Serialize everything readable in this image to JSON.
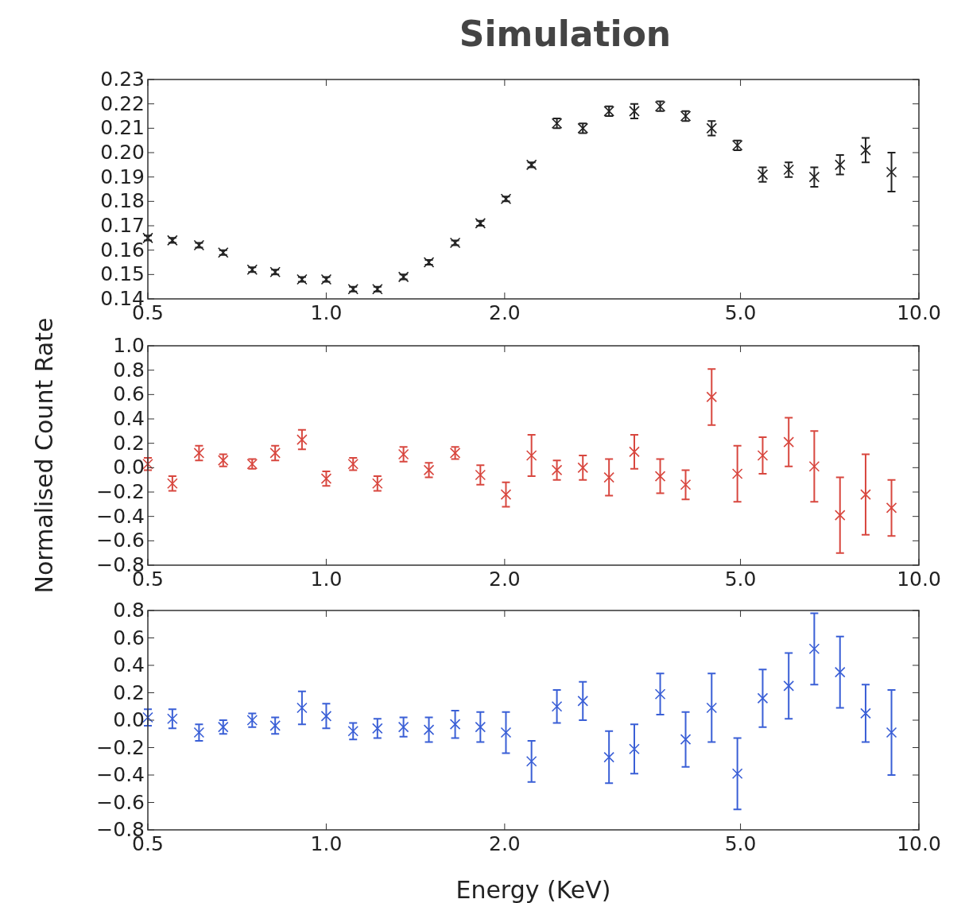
{
  "chart_data": [
    {
      "type": "scatter",
      "title": "Simulation",
      "marker": "cross",
      "grid": false,
      "x": [
        0.5,
        0.55,
        0.61,
        0.67,
        0.75,
        0.82,
        0.91,
        1.0,
        1.11,
        1.22,
        1.35,
        1.49,
        1.65,
        1.82,
        2.01,
        2.22,
        2.45,
        2.71,
        3.0,
        3.31,
        3.66,
        4.04,
        4.47,
        4.94,
        5.45,
        6.03,
        6.66,
        7.36,
        8.13,
        8.99
      ],
      "log": "x",
      "xlim": [
        0.5,
        10
      ],
      "xticks": [
        {
          "value": 0.5,
          "label": "0.5"
        },
        {
          "value": 1,
          "label": "1.0"
        },
        {
          "value": 2,
          "label": "2.0"
        },
        {
          "value": 5,
          "label": "5.0"
        },
        {
          "value": 10,
          "label": "10.0"
        }
      ],
      "ylim": [
        0.14,
        0.23
      ],
      "yticks": [
        {
          "value": 0.14,
          "label": "0.14"
        },
        {
          "value": 0.15,
          "label": "0.15"
        },
        {
          "value": 0.16,
          "label": "0.16"
        },
        {
          "value": 0.17,
          "label": "0.17"
        },
        {
          "value": 0.18,
          "label": "0.18"
        },
        {
          "value": 0.19,
          "label": "0.19"
        },
        {
          "value": 0.2,
          "label": "0.20"
        },
        {
          "value": 0.21,
          "label": "0.21"
        },
        {
          "value": 0.22,
          "label": "0.22"
        },
        {
          "value": 0.23,
          "label": "0.23"
        }
      ],
      "series": [
        {
          "color": "#222222",
          "values": [
            0.165,
            0.164,
            0.162,
            0.159,
            0.152,
            0.151,
            0.148,
            0.148,
            0.144,
            0.144,
            0.149,
            0.155,
            0.163,
            0.171,
            0.181,
            0.195,
            0.212,
            0.21,
            0.217,
            0.217,
            0.219,
            0.215,
            0.21,
            0.203,
            0.191,
            0.193,
            0.19,
            0.195,
            0.201,
            0.192
          ],
          "errors": [
            0.001,
            0.001,
            0.001,
            0.001,
            0.001,
            0.001,
            0.001,
            0.001,
            0.001,
            0.001,
            0.001,
            0.001,
            0.001,
            0.001,
            0.001,
            0.001,
            0.002,
            0.002,
            0.002,
            0.003,
            0.002,
            0.002,
            0.003,
            0.002,
            0.003,
            0.003,
            0.004,
            0.004,
            0.005,
            0.008
          ]
        }
      ]
    },
    {
      "type": "scatter",
      "ylabel": "Normalised Count Rate",
      "marker": "cross",
      "grid": false,
      "x": [
        0.5,
        0.55,
        0.61,
        0.67,
        0.75,
        0.82,
        0.91,
        1.0,
        1.11,
        1.22,
        1.35,
        1.49,
        1.65,
        1.82,
        2.01,
        2.22,
        2.45,
        2.71,
        3.0,
        3.31,
        3.66,
        4.04,
        4.47,
        4.94,
        5.45,
        6.03,
        6.66,
        7.36,
        8.13,
        8.99
      ],
      "log": "x",
      "xlim": [
        0.5,
        10
      ],
      "xticks": [
        {
          "value": 0.5,
          "label": "0.5"
        },
        {
          "value": 1,
          "label": "1.0"
        },
        {
          "value": 2,
          "label": "2.0"
        },
        {
          "value": 5,
          "label": "5.0"
        },
        {
          "value": 10,
          "label": "10.0"
        }
      ],
      "ylim": [
        -0.8,
        1.0
      ],
      "yticks": [
        {
          "value": -0.8,
          "label": "−0.8"
        },
        {
          "value": -0.6,
          "label": "−0.6"
        },
        {
          "value": -0.4,
          "label": "−0.4"
        },
        {
          "value": -0.2,
          "label": "−0.2"
        },
        {
          "value": 0,
          "label": "0.0"
        },
        {
          "value": 0.2,
          "label": "0.2"
        },
        {
          "value": 0.4,
          "label": "0.4"
        },
        {
          "value": 0.6,
          "label": "0.6"
        },
        {
          "value": 0.8,
          "label": "0.8"
        },
        {
          "value": 1.0,
          "label": "1.0"
        }
      ],
      "series": [
        {
          "color": "#d8473f",
          "values": [
            0.03,
            -0.13,
            0.12,
            0.06,
            0.03,
            0.12,
            0.23,
            -0.09,
            0.03,
            -0.13,
            0.11,
            -0.02,
            0.12,
            -0.06,
            -0.22,
            0.1,
            -0.02,
            0.0,
            -0.08,
            0.13,
            -0.07,
            -0.14,
            0.58,
            -0.05,
            0.1,
            0.21,
            0.01,
            -0.39,
            -0.22,
            -0.33
          ],
          "errors": [
            0.05,
            0.06,
            0.06,
            0.05,
            0.04,
            0.06,
            0.08,
            0.06,
            0.05,
            0.06,
            0.06,
            0.06,
            0.05,
            0.08,
            0.1,
            0.17,
            0.08,
            0.1,
            0.15,
            0.14,
            0.14,
            0.12,
            0.23,
            0.23,
            0.15,
            0.2,
            0.29,
            0.31,
            0.33,
            0.23
          ]
        }
      ]
    },
    {
      "type": "scatter",
      "xlabel": "Energy (KeV)",
      "marker": "cross",
      "grid": false,
      "x": [
        0.5,
        0.55,
        0.61,
        0.67,
        0.75,
        0.82,
        0.91,
        1.0,
        1.11,
        1.22,
        1.35,
        1.49,
        1.65,
        1.82,
        2.01,
        2.22,
        2.45,
        2.71,
        3.0,
        3.31,
        3.66,
        4.04,
        4.47,
        4.94,
        5.45,
        6.03,
        6.66,
        7.36,
        8.13,
        8.99
      ],
      "log": "x",
      "xlim": [
        0.5,
        10
      ],
      "xticks": [
        {
          "value": 0.5,
          "label": "0.5"
        },
        {
          "value": 1,
          "label": "1.0"
        },
        {
          "value": 2,
          "label": "2.0"
        },
        {
          "value": 5,
          "label": "5.0"
        },
        {
          "value": 10,
          "label": "10.0"
        }
      ],
      "ylim": [
        -0.8,
        0.8
      ],
      "yticks": [
        {
          "value": -0.8,
          "label": "−0.8"
        },
        {
          "value": -0.6,
          "label": "−0.6"
        },
        {
          "value": -0.4,
          "label": "−0.4"
        },
        {
          "value": -0.2,
          "label": "−0.2"
        },
        {
          "value": 0,
          "label": "0.0"
        },
        {
          "value": 0.2,
          "label": "0.2"
        },
        {
          "value": 0.4,
          "label": "0.4"
        },
        {
          "value": 0.6,
          "label": "0.6"
        },
        {
          "value": 0.8,
          "label": "0.8"
        }
      ],
      "series": [
        {
          "color": "#3a5fd6",
          "values": [
            0.02,
            0.01,
            -0.09,
            -0.05,
            0.0,
            -0.04,
            0.09,
            0.03,
            -0.08,
            -0.06,
            -0.05,
            -0.07,
            -0.03,
            -0.05,
            -0.09,
            -0.3,
            0.1,
            0.14,
            -0.27,
            -0.21,
            0.19,
            -0.14,
            0.09,
            -0.39,
            0.16,
            0.25,
            0.52,
            0.35,
            0.05,
            -0.09
          ],
          "errors": [
            0.06,
            0.07,
            0.06,
            0.05,
            0.05,
            0.06,
            0.12,
            0.09,
            0.06,
            0.07,
            0.07,
            0.09,
            0.1,
            0.11,
            0.15,
            0.15,
            0.12,
            0.14,
            0.19,
            0.18,
            0.15,
            0.2,
            0.25,
            0.26,
            0.21,
            0.24,
            0.26,
            0.26,
            0.21,
            0.31
          ]
        }
      ]
    }
  ]
}
